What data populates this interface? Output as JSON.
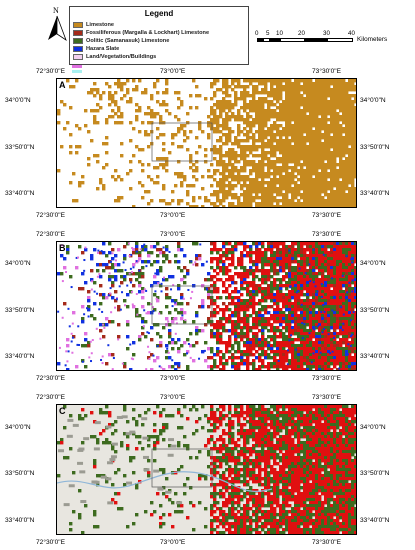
{
  "legend": {
    "title": "Legend",
    "items": [
      {
        "label": "Limestone",
        "color": "#c68a1f"
      },
      {
        "label": "Fossiliferous (Margalla & Lockhart) Limestone",
        "color": "#a52a1a"
      },
      {
        "label": "Oolitic (Samanasuk) Limestone",
        "color": "#3d6b1f"
      },
      {
        "label": "Hazara Slate",
        "color": "#1030e0"
      },
      {
        "label": "Land/Vegetation/Buildings",
        "color": "#f2d0f0"
      }
    ],
    "extra_swatches": [
      "#e070e0",
      "#a8f0f0"
    ]
  },
  "north_arrow": {
    "label": "N"
  },
  "scale_bar": {
    "ticks": [
      "0",
      "5",
      "10",
      "20",
      "30",
      "40"
    ],
    "unit": "Kilometers"
  },
  "coordinates": {
    "lon": [
      "72°30'0\"E",
      "73°0'0\"E",
      "73°30'0\"E"
    ],
    "lat": [
      "34°0'0\"N",
      "33°50'0\"N",
      "33°40'0\"N"
    ]
  },
  "panels": [
    {
      "label": "A",
      "colors": [
        "#c68a1f"
      ]
    },
    {
      "label": "B",
      "colors": [
        "#e01010",
        "#3d6b1f",
        "#1030e0",
        "#a52a1a",
        "#e070e0",
        "#a8f0f0"
      ]
    },
    {
      "label": "C",
      "colors": [
        "#e01010",
        "#3d6b1f",
        "#8a8a80",
        "#8fb6d8"
      ]
    }
  ]
}
